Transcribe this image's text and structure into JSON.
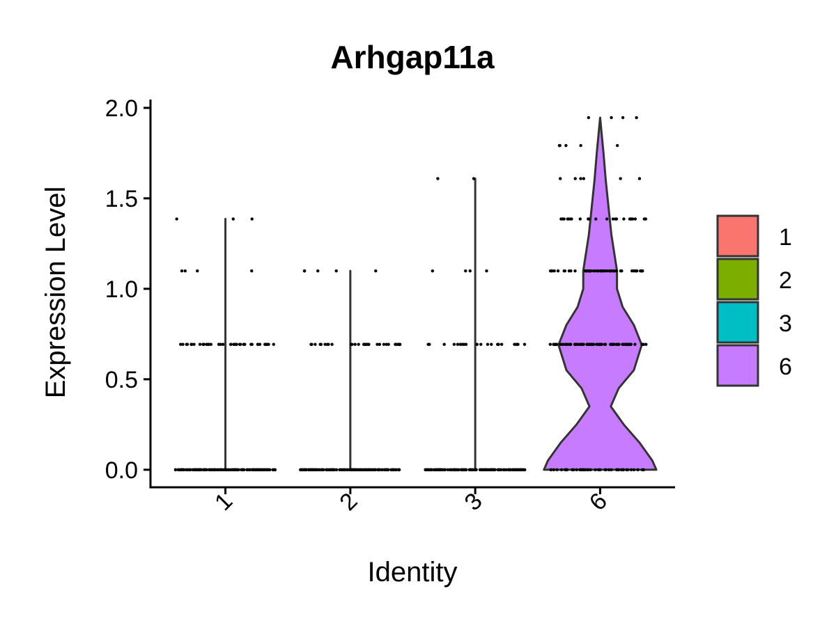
{
  "chart_data": {
    "type": "violin",
    "title": "Arhgap11a",
    "x_label": "Identity",
    "y_label": "Expression Level",
    "categories": [
      "1",
      "2",
      "3",
      "6"
    ],
    "series": [
      {
        "name": "1",
        "color": "#F8766D",
        "violin_y": [
          0,
          1.386
        ],
        "violin_density": [
          0,
          0
        ],
        "point_levels": [
          0,
          0.693,
          1.099,
          1.386
        ],
        "point_counts": [
          140,
          40,
          4,
          3
        ]
      },
      {
        "name": "2",
        "color": "#7CAE00",
        "violin_y": [
          0,
          1.099
        ],
        "violin_density": [
          0,
          0
        ],
        "point_levels": [
          0,
          0.693,
          1.099
        ],
        "point_counts": [
          140,
          35,
          5
        ]
      },
      {
        "name": "3",
        "color": "#00BFC4",
        "violin_y": [
          0,
          1.609
        ],
        "violin_density": [
          0,
          0
        ],
        "point_levels": [
          0,
          0.693,
          1.099,
          1.609
        ],
        "point_counts": [
          140,
          22,
          4,
          2
        ]
      },
      {
        "name": "6",
        "color": "#C77CFF",
        "violin_y": [
          0,
          0.05,
          0.15,
          0.25,
          0.35,
          0.45,
          0.55,
          0.69,
          0.8,
          0.9,
          1.0,
          1.1,
          1.2,
          1.3,
          1.45,
          1.6,
          1.75,
          1.946
        ],
        "violin_density": [
          1.0,
          0.93,
          0.7,
          0.42,
          0.19,
          0.33,
          0.6,
          0.74,
          0.6,
          0.4,
          0.3,
          0.3,
          0.25,
          0.2,
          0.15,
          0.1,
          0.06,
          0
        ],
        "point_levels": [
          0,
          0.693,
          1.099,
          1.386,
          1.609,
          1.792,
          1.946
        ],
        "point_counts": [
          45,
          80,
          50,
          25,
          6,
          5,
          4
        ]
      }
    ],
    "ylim": [
      -0.097,
      2.046
    ],
    "yticks": [
      {
        "value": 0,
        "label": "0.0"
      },
      0.5,
      {
        "value": 1,
        "label": "1.0"
      },
      1.5,
      {
        "value": 2,
        "label": "2.0"
      }
    ],
    "legend": "right"
  }
}
